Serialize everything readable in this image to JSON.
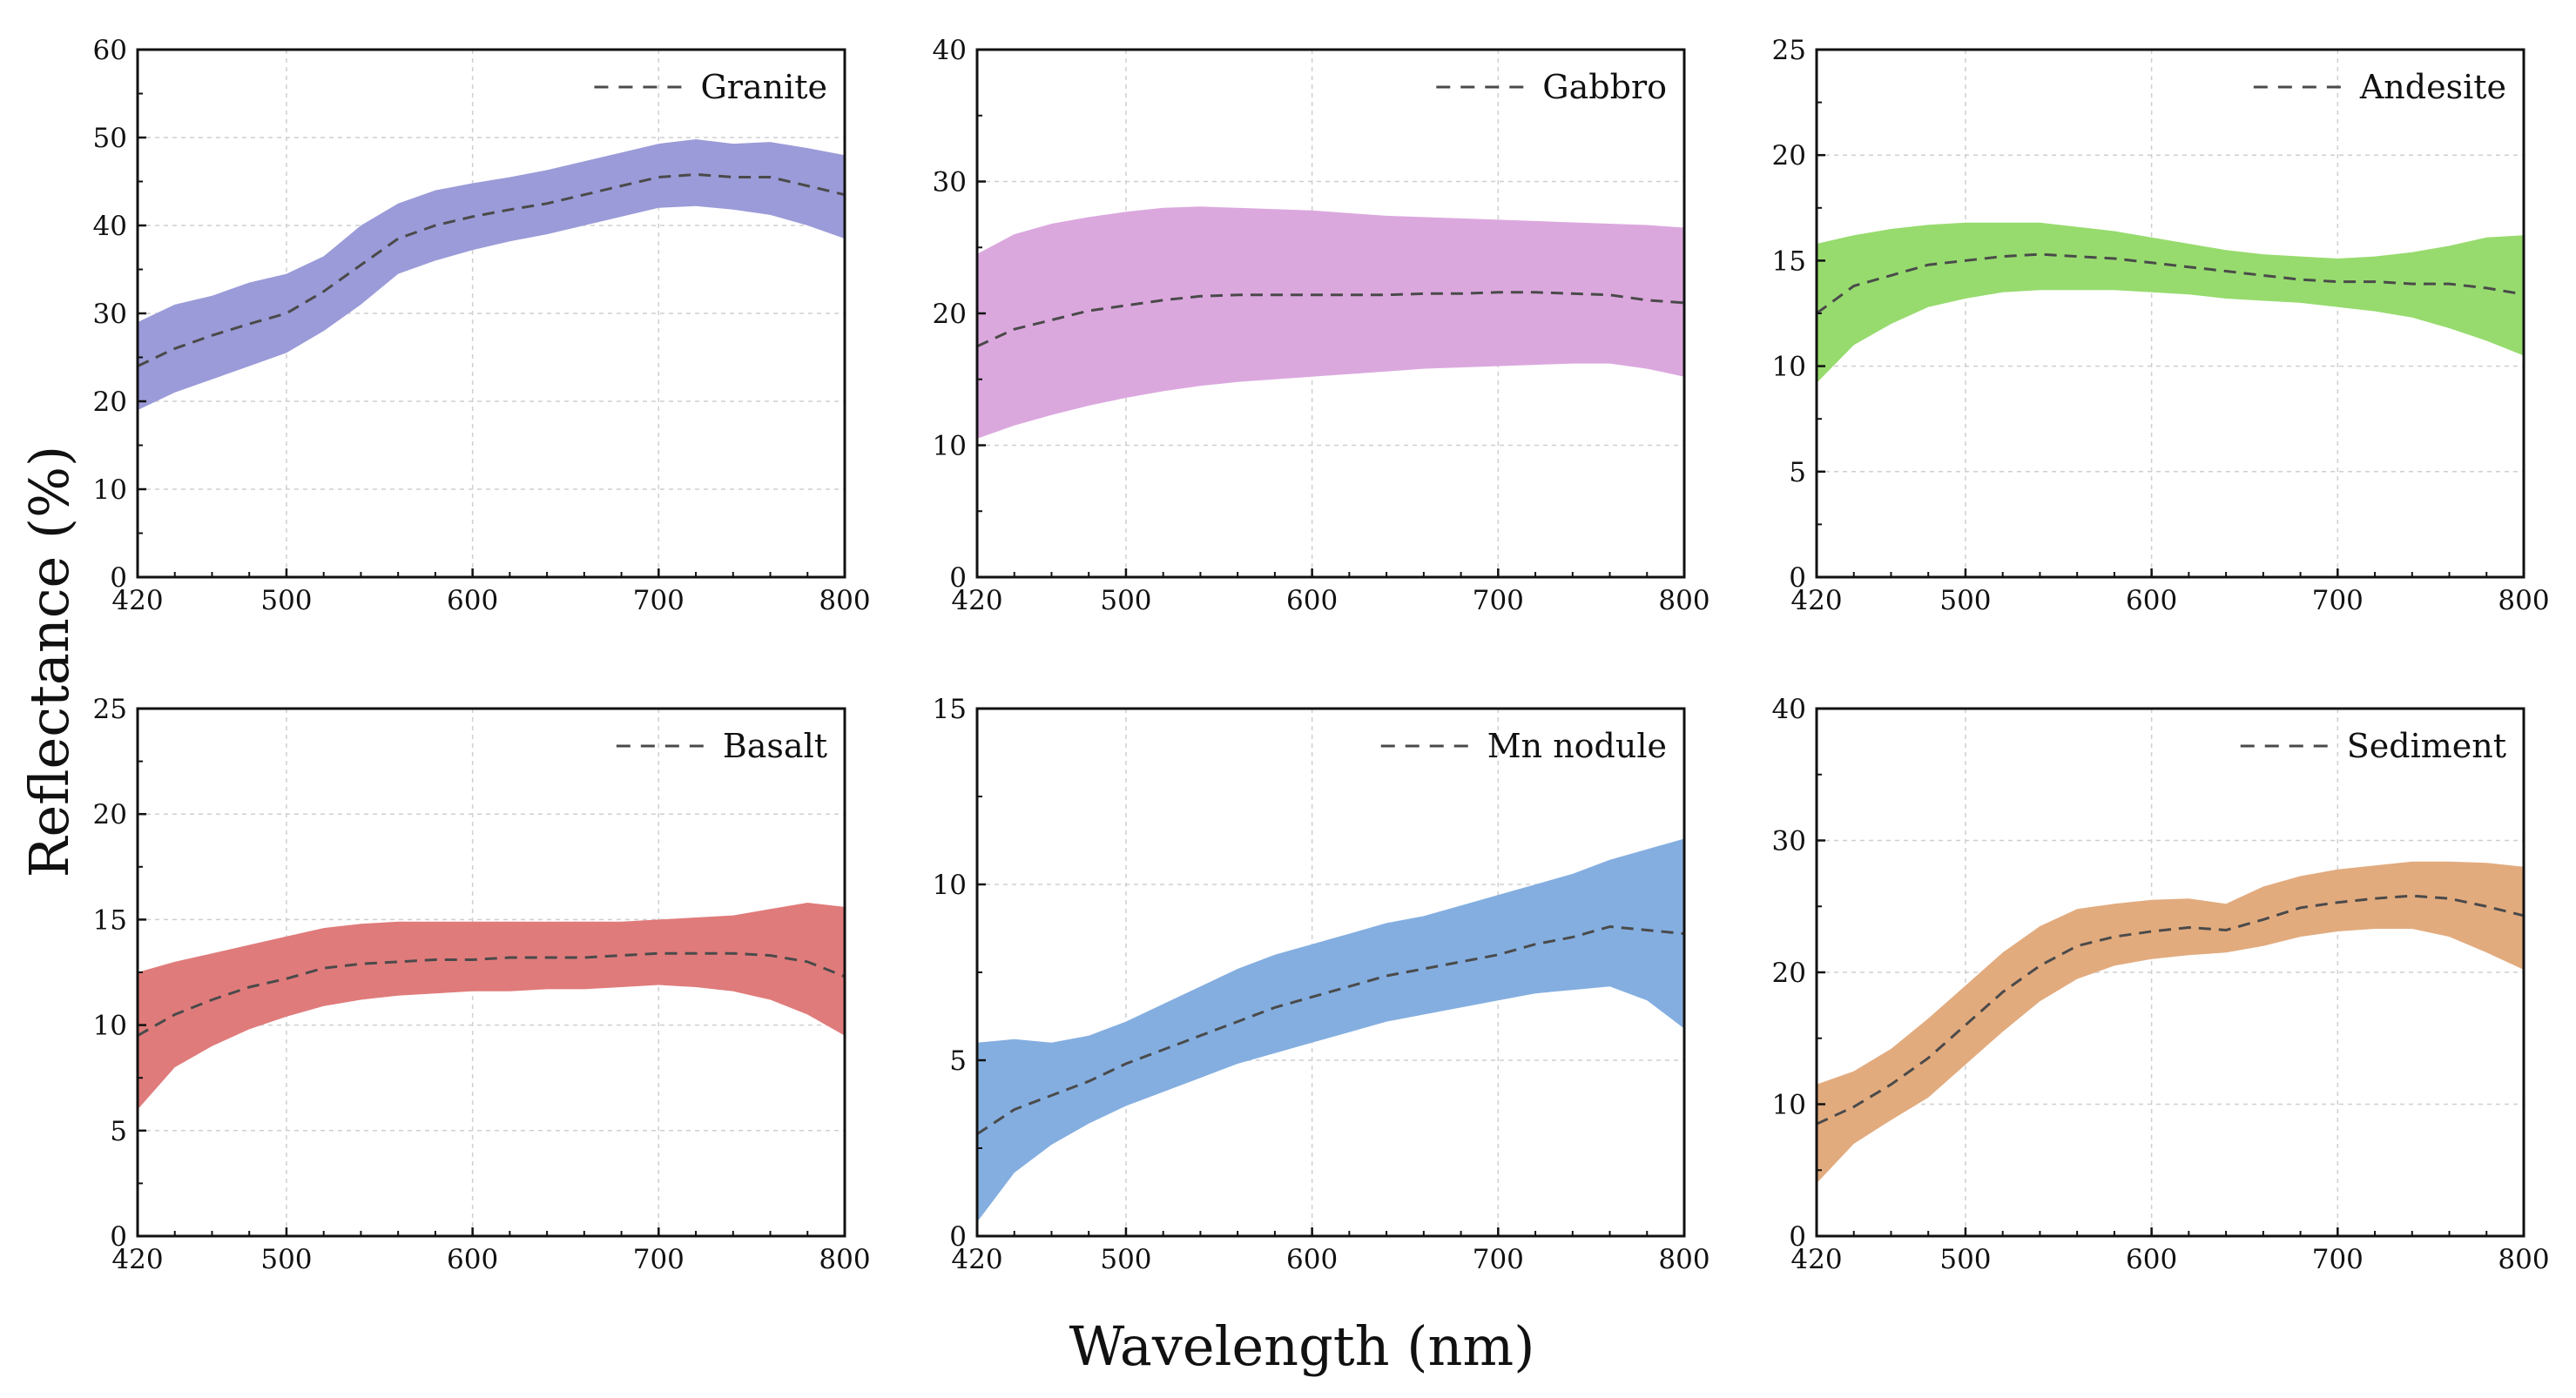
{
  "figure": {
    "ylabel": "Reflectance (%)",
    "xlabel": "Wavelength (nm)"
  },
  "chart_data": [
    {
      "type": "area",
      "title": "Granite",
      "legend_label": "Granite",
      "legend_position": "top-right",
      "color": "#9b9bd9",
      "grid": true,
      "xlim": [
        420,
        800
      ],
      "ylim": [
        0,
        60
      ],
      "xticks": [
        420,
        500,
        600,
        700,
        800
      ],
      "yticks": [
        0,
        10,
        20,
        30,
        40,
        50,
        60
      ],
      "x": [
        420,
        440,
        460,
        480,
        500,
        520,
        540,
        560,
        580,
        600,
        620,
        640,
        660,
        680,
        700,
        720,
        740,
        760,
        780,
        800
      ],
      "mean": [
        24,
        26,
        27.5,
        28.8,
        30,
        32.5,
        35.5,
        38.5,
        40,
        41,
        41.8,
        42.5,
        43.5,
        44.5,
        45.5,
        45.8,
        45.5,
        45.5,
        44.5,
        43.5
      ],
      "upper": [
        29,
        31,
        32,
        33.5,
        34.5,
        36.5,
        40,
        42.5,
        44,
        44.8,
        45.5,
        46.3,
        47.3,
        48.3,
        49.3,
        49.8,
        49.3,
        49.5,
        48.8,
        48
      ],
      "lower": [
        19,
        21,
        22.5,
        24,
        25.5,
        28,
        31,
        34.5,
        36,
        37.2,
        38.2,
        39,
        40,
        41,
        42,
        42.2,
        41.8,
        41.2,
        40,
        38.5
      ]
    },
    {
      "type": "area",
      "title": "Gabbro",
      "legend_label": "Gabbro",
      "legend_position": "top-right",
      "color": "#dba8de",
      "grid": true,
      "xlim": [
        420,
        800
      ],
      "ylim": [
        0,
        40
      ],
      "xticks": [
        420,
        500,
        600,
        700,
        800
      ],
      "yticks": [
        0,
        10,
        20,
        30,
        40
      ],
      "x": [
        420,
        440,
        460,
        480,
        500,
        520,
        540,
        560,
        580,
        600,
        620,
        640,
        660,
        680,
        700,
        720,
        740,
        760,
        780,
        800
      ],
      "mean": [
        17.5,
        18.8,
        19.5,
        20.2,
        20.6,
        21,
        21.3,
        21.4,
        21.4,
        21.4,
        21.4,
        21.4,
        21.5,
        21.5,
        21.6,
        21.6,
        21.5,
        21.4,
        21,
        20.8
      ],
      "upper": [
        24.5,
        26,
        26.8,
        27.3,
        27.7,
        28,
        28.1,
        28,
        27.9,
        27.8,
        27.6,
        27.4,
        27.3,
        27.2,
        27.1,
        27,
        26.9,
        26.8,
        26.7,
        26.5
      ],
      "lower": [
        10.5,
        11.5,
        12.3,
        13,
        13.6,
        14.1,
        14.5,
        14.8,
        15,
        15.2,
        15.4,
        15.6,
        15.8,
        15.9,
        16,
        16.1,
        16.2,
        16.2,
        15.8,
        15.2
      ]
    },
    {
      "type": "area",
      "title": "Andesite",
      "legend_label": "Andesite",
      "legend_position": "top-right",
      "color": "#97db6e",
      "grid": true,
      "xlim": [
        420,
        800
      ],
      "ylim": [
        0,
        25
      ],
      "xticks": [
        420,
        500,
        600,
        700,
        800
      ],
      "yticks": [
        0,
        5,
        10,
        15,
        20,
        25
      ],
      "x": [
        420,
        440,
        460,
        480,
        500,
        520,
        540,
        560,
        580,
        600,
        620,
        640,
        660,
        680,
        700,
        720,
        740,
        760,
        780,
        800
      ],
      "mean": [
        12.5,
        13.8,
        14.3,
        14.8,
        15,
        15.2,
        15.3,
        15.2,
        15.1,
        14.9,
        14.7,
        14.5,
        14.3,
        14.1,
        14,
        14,
        13.9,
        13.9,
        13.7,
        13.4
      ],
      "upper": [
        15.8,
        16.2,
        16.5,
        16.7,
        16.8,
        16.8,
        16.8,
        16.6,
        16.4,
        16.1,
        15.8,
        15.5,
        15.3,
        15.2,
        15.1,
        15.2,
        15.4,
        15.7,
        16.1,
        16.2
      ],
      "lower": [
        9.2,
        11,
        12,
        12.8,
        13.2,
        13.5,
        13.6,
        13.6,
        13.6,
        13.5,
        13.4,
        13.2,
        13.1,
        13,
        12.8,
        12.6,
        12.3,
        11.8,
        11.2,
        10.5
      ]
    },
    {
      "type": "area",
      "title": "Basalt",
      "legend_label": "Basalt",
      "legend_position": "top-right",
      "color": "#e07b7b",
      "grid": true,
      "xlim": [
        420,
        800
      ],
      "ylim": [
        0,
        25
      ],
      "xticks": [
        420,
        500,
        600,
        700,
        800
      ],
      "yticks": [
        0,
        5,
        10,
        15,
        20,
        25
      ],
      "x": [
        420,
        440,
        460,
        480,
        500,
        520,
        540,
        560,
        580,
        600,
        620,
        640,
        660,
        680,
        700,
        720,
        740,
        760,
        780,
        800
      ],
      "mean": [
        9.5,
        10.5,
        11.2,
        11.8,
        12.2,
        12.7,
        12.9,
        13,
        13.1,
        13.1,
        13.2,
        13.2,
        13.2,
        13.3,
        13.4,
        13.4,
        13.4,
        13.3,
        13,
        12.3
      ],
      "upper": [
        12.5,
        13,
        13.4,
        13.8,
        14.2,
        14.6,
        14.8,
        14.9,
        14.9,
        14.9,
        14.9,
        14.9,
        14.9,
        14.9,
        15,
        15.1,
        15.2,
        15.5,
        15.8,
        15.6
      ],
      "lower": [
        6,
        8,
        9,
        9.8,
        10.4,
        10.9,
        11.2,
        11.4,
        11.5,
        11.6,
        11.6,
        11.7,
        11.7,
        11.8,
        11.9,
        11.8,
        11.6,
        11.2,
        10.5,
        9.5
      ]
    },
    {
      "type": "area",
      "title": "Mn nodule",
      "legend_label": "Mn nodule",
      "legend_position": "top-right",
      "color": "#84aee0",
      "grid": true,
      "xlim": [
        420,
        800
      ],
      "ylim": [
        0,
        15
      ],
      "xticks": [
        420,
        500,
        600,
        700,
        800
      ],
      "yticks": [
        0,
        5,
        10,
        15
      ],
      "x": [
        420,
        440,
        460,
        480,
        500,
        520,
        540,
        560,
        580,
        600,
        620,
        640,
        660,
        680,
        700,
        720,
        740,
        760,
        780,
        800
      ],
      "mean": [
        2.9,
        3.6,
        4,
        4.4,
        4.9,
        5.3,
        5.7,
        6.1,
        6.5,
        6.8,
        7.1,
        7.4,
        7.6,
        7.8,
        8,
        8.3,
        8.5,
        8.8,
        8.7,
        8.6
      ],
      "upper": [
        5.5,
        5.6,
        5.5,
        5.7,
        6.1,
        6.6,
        7.1,
        7.6,
        8,
        8.3,
        8.6,
        8.9,
        9.1,
        9.4,
        9.7,
        10,
        10.3,
        10.7,
        11,
        11.3
      ],
      "lower": [
        0.4,
        1.8,
        2.6,
        3.2,
        3.7,
        4.1,
        4.5,
        4.9,
        5.2,
        5.5,
        5.8,
        6.1,
        6.3,
        6.5,
        6.7,
        6.9,
        7,
        7.1,
        6.7,
        5.9
      ]
    },
    {
      "type": "area",
      "title": "Sediment",
      "legend_label": "Sediment",
      "legend_position": "top-right",
      "color": "#e2ab7e",
      "grid": true,
      "xlim": [
        420,
        800
      ],
      "ylim": [
        0,
        40
      ],
      "xticks": [
        420,
        500,
        600,
        700,
        800
      ],
      "yticks": [
        0,
        10,
        20,
        30,
        40
      ],
      "x": [
        420,
        440,
        460,
        480,
        500,
        520,
        540,
        560,
        580,
        600,
        620,
        640,
        660,
        680,
        700,
        720,
        740,
        760,
        780,
        800
      ],
      "mean": [
        8.5,
        9.8,
        11.5,
        13.5,
        16,
        18.5,
        20.5,
        22,
        22.7,
        23.1,
        23.4,
        23.2,
        24,
        24.9,
        25.3,
        25.6,
        25.8,
        25.6,
        25,
        24.3
      ],
      "upper": [
        11.5,
        12.5,
        14.2,
        16.5,
        19,
        21.5,
        23.5,
        24.8,
        25.2,
        25.5,
        25.6,
        25.2,
        26.5,
        27.3,
        27.8,
        28.1,
        28.4,
        28.4,
        28.3,
        28
      ],
      "lower": [
        4,
        7,
        8.8,
        10.5,
        13,
        15.5,
        17.8,
        19.5,
        20.5,
        21,
        21.3,
        21.5,
        22,
        22.7,
        23.1,
        23.3,
        23.3,
        22.7,
        21.5,
        20.2
      ]
    }
  ]
}
